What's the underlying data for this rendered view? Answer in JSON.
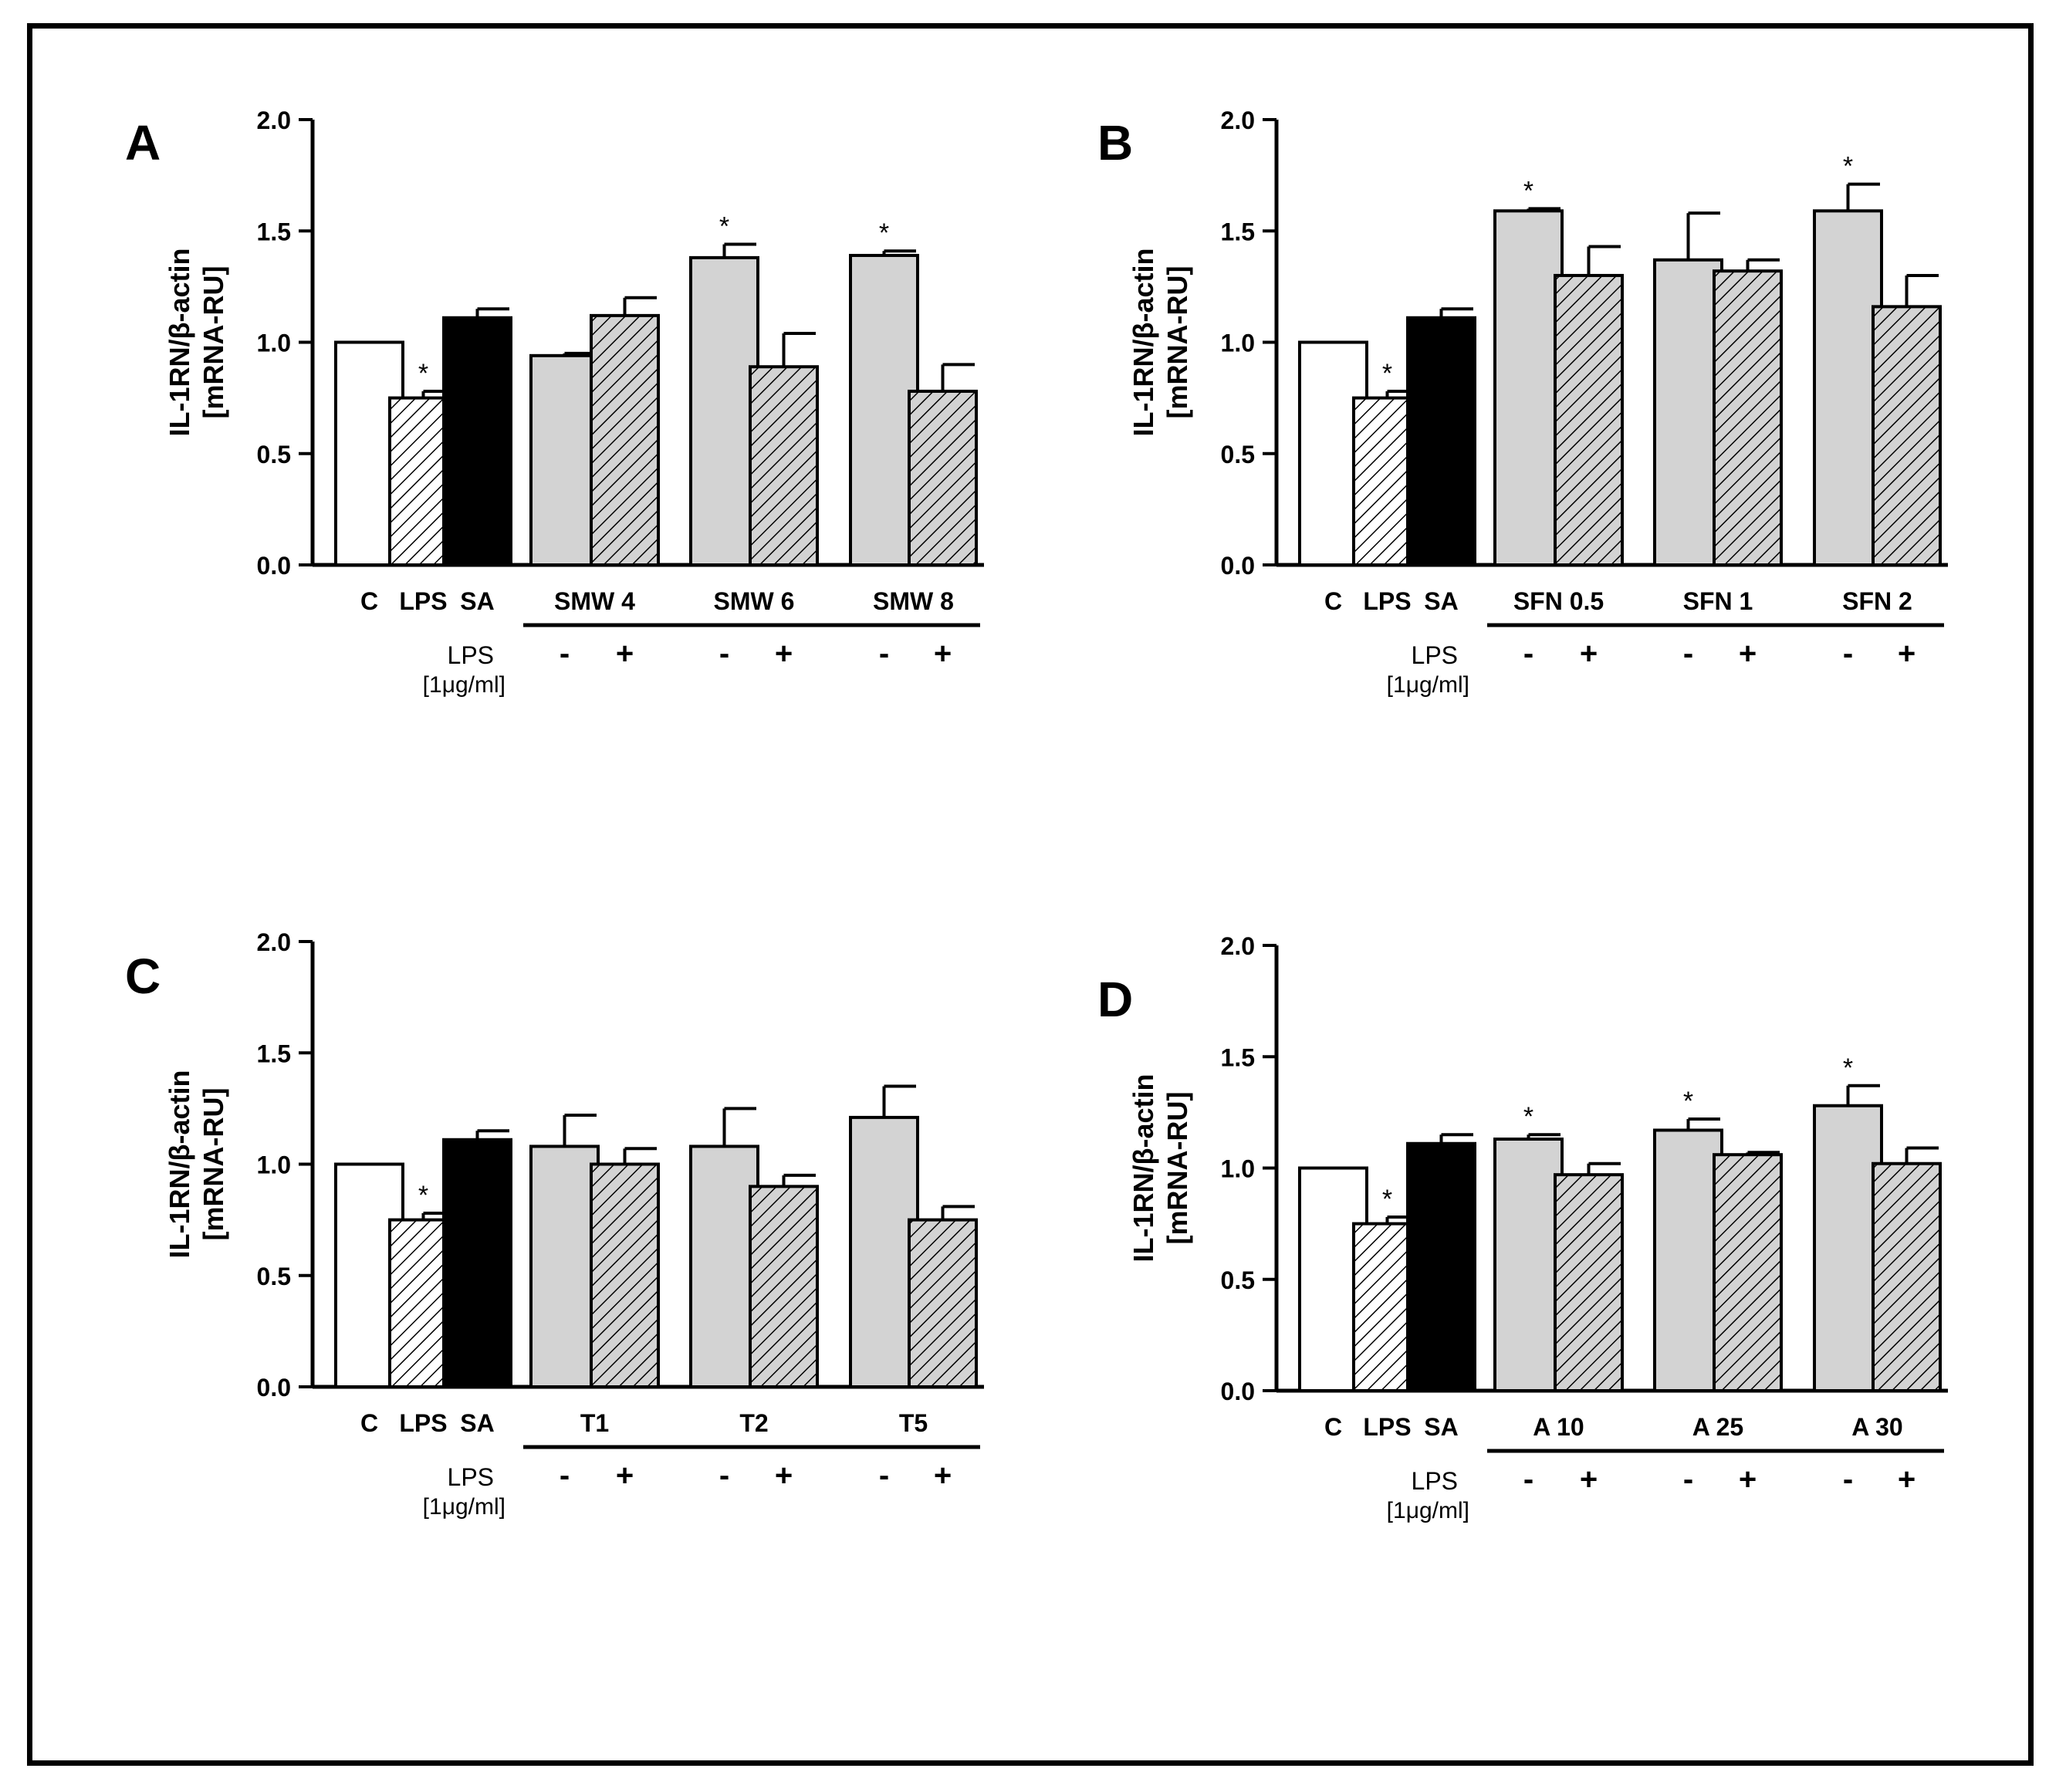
{
  "figure": {
    "colors": {
      "frame": "#000000",
      "control": "#ffffff",
      "lps": "#ffffff",
      "sa": "#000000",
      "treatment": "#d3d3d3",
      "axis": "#000000"
    },
    "common": {
      "ylabel_line1": "IL-1RN/β-actin",
      "ylabel_line2": "[mRNA-RU]",
      "yticks": [
        "0.0",
        "0.5",
        "1.0",
        "1.5",
        "2.0"
      ],
      "lps_row_label": "LPS",
      "lps_row_unit": "[1μg/ml]",
      "minus_sign": "-",
      "plus_sign": "+",
      "sig_marker": "*"
    }
  },
  "chart_data": [
    {
      "panel": "A",
      "type": "bar",
      "title": "",
      "ylabel": "IL-1RN/β-actin [mRNA-RU]",
      "ylim": [
        0,
        2.0
      ],
      "yticks": [
        0,
        0.5,
        1.0,
        1.5,
        2.0
      ],
      "control_categories": [
        "C",
        "LPS",
        "SA"
      ],
      "groups": [
        "SMW 4",
        "SMW 6",
        "SMW 8"
      ],
      "series": [
        {
          "name": "C",
          "values": [
            1.0
          ],
          "errors": [
            0
          ],
          "sig": [
            false
          ]
        },
        {
          "name": "LPS",
          "values": [
            0.75
          ],
          "errors": [
            0.03
          ],
          "sig": [
            true
          ]
        },
        {
          "name": "SA",
          "values": [
            1.11
          ],
          "errors": [
            0.04
          ],
          "sig": [
            false
          ]
        },
        {
          "name": "LPS -",
          "values": [
            0.94,
            1.38,
            1.39
          ],
          "errors": [
            0.01,
            0.06,
            0.02
          ],
          "sig": [
            false,
            true,
            true
          ]
        },
        {
          "name": "LPS +",
          "values": [
            1.12,
            0.89,
            0.78
          ],
          "errors": [
            0.08,
            0.15,
            0.12
          ],
          "sig": [
            false,
            false,
            false
          ]
        }
      ]
    },
    {
      "panel": "B",
      "type": "bar",
      "title": "",
      "ylabel": "IL-1RN/β-actin [mRNA-RU]",
      "ylim": [
        0,
        2.0
      ],
      "yticks": [
        0,
        0.5,
        1.0,
        1.5,
        2.0
      ],
      "control_categories": [
        "C",
        "LPS",
        "SA"
      ],
      "groups": [
        "SFN 0.5",
        "SFN 1",
        "SFN 2"
      ],
      "series": [
        {
          "name": "C",
          "values": [
            1.0
          ],
          "errors": [
            0
          ],
          "sig": [
            false
          ]
        },
        {
          "name": "LPS",
          "values": [
            0.75
          ],
          "errors": [
            0.03
          ],
          "sig": [
            true
          ]
        },
        {
          "name": "SA",
          "values": [
            1.11
          ],
          "errors": [
            0.04
          ],
          "sig": [
            false
          ]
        },
        {
          "name": "LPS -",
          "values": [
            1.59,
            1.37,
            1.59
          ],
          "errors": [
            0.01,
            0.21,
            0.12
          ],
          "sig": [
            true,
            false,
            true
          ]
        },
        {
          "name": "LPS +",
          "values": [
            1.3,
            1.32,
            1.16
          ],
          "errors": [
            0.13,
            0.05,
            0.14
          ],
          "sig": [
            false,
            false,
            false
          ]
        }
      ]
    },
    {
      "panel": "C",
      "type": "bar",
      "title": "",
      "ylabel": "IL-1RN/β-actin [mRNA-RU]",
      "ylim": [
        0,
        2.0
      ],
      "yticks": [
        0,
        0.5,
        1.0,
        1.5,
        2.0
      ],
      "control_categories": [
        "C",
        "LPS",
        "SA"
      ],
      "groups": [
        "T1",
        "T2",
        "T5"
      ],
      "series": [
        {
          "name": "C",
          "values": [
            1.0
          ],
          "errors": [
            0
          ],
          "sig": [
            false
          ]
        },
        {
          "name": "LPS",
          "values": [
            0.75
          ],
          "errors": [
            0.03
          ],
          "sig": [
            true
          ]
        },
        {
          "name": "SA",
          "values": [
            1.11
          ],
          "errors": [
            0.04
          ],
          "sig": [
            false
          ]
        },
        {
          "name": "LPS -",
          "values": [
            1.08,
            1.08,
            1.21
          ],
          "errors": [
            0.14,
            0.17,
            0.14
          ],
          "sig": [
            false,
            false,
            false
          ]
        },
        {
          "name": "LPS +",
          "values": [
            1.0,
            0.9,
            0.75
          ],
          "errors": [
            0.07,
            0.05,
            0.06
          ],
          "sig": [
            false,
            false,
            false
          ]
        }
      ]
    },
    {
      "panel": "D",
      "type": "bar",
      "title": "",
      "ylabel": "IL-1RN/β-actin [mRNA-RU]",
      "ylim": [
        0,
        2.0
      ],
      "yticks": [
        0,
        0.5,
        1.0,
        1.5,
        2.0
      ],
      "control_categories": [
        "C",
        "LPS",
        "SA"
      ],
      "groups": [
        "A 10",
        "A 25",
        "A 30"
      ],
      "series": [
        {
          "name": "C",
          "values": [
            1.0
          ],
          "errors": [
            0
          ],
          "sig": [
            false
          ]
        },
        {
          "name": "LPS",
          "values": [
            0.75
          ],
          "errors": [
            0.03
          ],
          "sig": [
            true
          ]
        },
        {
          "name": "SA",
          "values": [
            1.11
          ],
          "errors": [
            0.04
          ],
          "sig": [
            false
          ]
        },
        {
          "name": "LPS -",
          "values": [
            1.13,
            1.17,
            1.28
          ],
          "errors": [
            0.02,
            0.05,
            0.09
          ],
          "sig": [
            true,
            true,
            true
          ]
        },
        {
          "name": "LPS +",
          "values": [
            0.97,
            1.06,
            1.02
          ],
          "errors": [
            0.05,
            0.01,
            0.07
          ],
          "sig": [
            false,
            false,
            false
          ]
        }
      ]
    }
  ]
}
